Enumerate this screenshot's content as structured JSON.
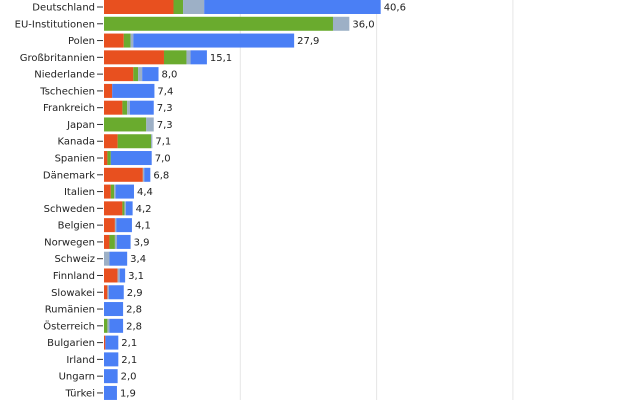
{
  "chart_data": {
    "type": "bar",
    "orientation": "horizontal",
    "stacked": true,
    "title": "",
    "xlabel": "",
    "ylabel": "",
    "xlim": [
      0,
      78
    ],
    "gridlines": [
      20,
      40,
      60
    ],
    "grid": true,
    "decimal_separator": ",",
    "categories": [
      "Deutschland",
      "EU-Institutionen",
      "Polen",
      "Großbritannien",
      "Niederlande",
      "Tschechien",
      "Frankreich",
      "Japan",
      "Kanada",
      "Spanien",
      "Dänemark",
      "Italien",
      "Schweden",
      "Belgien",
      "Norwegen",
      "Schweiz",
      "Finnland",
      "Slowakei",
      "Rumänien",
      "Österreich",
      "Bulgarien",
      "Irland",
      "Ungarn",
      "Türkei"
    ],
    "totals": [
      "40,6",
      "36,0",
      "27,9",
      "15,1",
      "8,0",
      "7,4",
      "7,3",
      "7,3",
      "7,1",
      "7,0",
      "6,8",
      "4,4",
      "4,2",
      "4,1",
      "3,9",
      "3,4",
      "3,1",
      "2,9",
      "2,8",
      "2,8",
      "2,1",
      "2,1",
      "2,0",
      "1,9"
    ],
    "series": [
      {
        "color": "#e8501f",
        "values": [
          10.2,
          0,
          2.9,
          8.8,
          4.3,
          1.2,
          2.7,
          0,
          2.0,
          0.5,
          5.7,
          1.0,
          2.7,
          1.6,
          0.8,
          0,
          2.0,
          0.5,
          0,
          0,
          0.2,
          0,
          0,
          0
        ]
      },
      {
        "color": "#6aab2e",
        "values": [
          1.4,
          33.6,
          1.0,
          3.3,
          0.7,
          0,
          0.7,
          6.2,
          4.9,
          0.5,
          0,
          0.5,
          0.3,
          0,
          0.8,
          0,
          0,
          0,
          0,
          0.5,
          0,
          0,
          0,
          0
        ]
      },
      {
        "color": "#9db0c6",
        "values": [
          3.1,
          2.4,
          0.4,
          0.6,
          0.6,
          0,
          0.4,
          1.1,
          0.2,
          0,
          0.2,
          0.2,
          0.2,
          0.2,
          0.3,
          0.8,
          0.3,
          0.2,
          0,
          0.3,
          0,
          0,
          0,
          0
        ]
      },
      {
        "color": "#4a7ff5",
        "values": [
          25.9,
          0,
          23.6,
          2.4,
          2.4,
          6.2,
          3.5,
          0,
          0,
          6.0,
          0.9,
          2.7,
          1.0,
          2.3,
          2.0,
          2.6,
          0.8,
          2.2,
          2.8,
          2.0,
          1.9,
          2.1,
          2.0,
          1.9
        ]
      }
    ]
  }
}
